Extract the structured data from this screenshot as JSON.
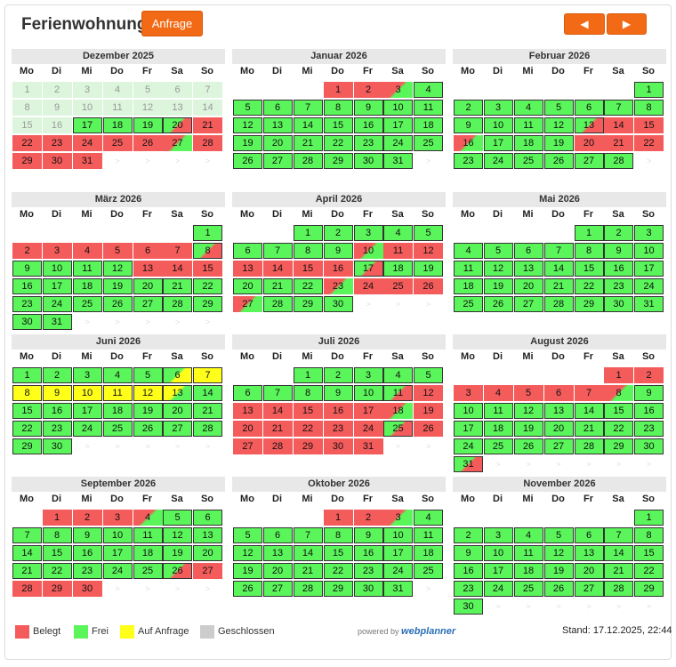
{
  "header": {
    "title": "Ferienwohnung",
    "request_label": "Anfrage",
    "prev_label": "◀",
    "next_label": "▶"
  },
  "weekdays": [
    "Mo",
    "Di",
    "Mi",
    "Do",
    "Fr",
    "Sa",
    "So"
  ],
  "legend": [
    {
      "label": "Belegt",
      "color": "#f45b5b"
    },
    {
      "label": "Frei",
      "color": "#5af55a"
    },
    {
      "label": "Auf Anfrage",
      "color": "#ffff1a"
    },
    {
      "label": "Geschlossen",
      "color": "#cccccc"
    }
  ],
  "footer": {
    "powered_prefix": "powered by",
    "powered_brand": "webplanner",
    "stand": "Stand: 17.12.2025, 22:44"
  },
  "months": [
    {
      "name": "Dezember 2025",
      "start": 0,
      "days": [
        "p",
        "p",
        "p",
        "p",
        "p",
        "p",
        "p",
        "p",
        "p",
        "p",
        "p",
        "p",
        "p",
        "p",
        "p",
        "p",
        "g",
        "g",
        "g",
        "gr",
        "r",
        "r",
        "r",
        "r",
        "r",
        "r",
        "rg",
        "r",
        "r",
        "r",
        "r"
      ]
    },
    {
      "name": "Januar 2026",
      "start": 3,
      "days": [
        "r",
        "r",
        "rg",
        "g",
        "g",
        "g",
        "g",
        "g",
        "g",
        "g",
        "g",
        "g",
        "g",
        "g",
        "g",
        "g",
        "g",
        "g",
        "g",
        "g",
        "g",
        "g",
        "g",
        "g",
        "g",
        "g",
        "g",
        "g",
        "g",
        "g",
        "g"
      ]
    },
    {
      "name": "Februar 2026",
      "start": 6,
      "days": [
        "g",
        "g",
        "g",
        "g",
        "g",
        "g",
        "g",
        "g",
        "g",
        "g",
        "g",
        "g",
        "gr",
        "r",
        "r",
        "rg",
        "g",
        "g",
        "g",
        "r",
        "r",
        "r",
        "g",
        "g",
        "g",
        "g",
        "g",
        "g"
      ]
    },
    {
      "name": "März 2026",
      "start": 6,
      "days": [
        "g",
        "r",
        "r",
        "r",
        "r",
        "r",
        "r",
        "gr",
        "g",
        "g",
        "g",
        "g",
        "r",
        "r",
        "r",
        "g",
        "g",
        "g",
        "g",
        "g",
        "g",
        "g",
        "g",
        "g",
        "g",
        "g",
        "g",
        "g",
        "g",
        "g",
        "g"
      ]
    },
    {
      "name": "April 2026",
      "start": 2,
      "days": [
        "g",
        "g",
        "g",
        "g",
        "g",
        "g",
        "g",
        "g",
        "g",
        "rg",
        "r",
        "r",
        "r",
        "r",
        "r",
        "r",
        "gr",
        "g",
        "g",
        "g",
        "g",
        "g",
        "rg",
        "r",
        "r",
        "r",
        "rg",
        "g",
        "g",
        "g"
      ]
    },
    {
      "name": "Mai 2026",
      "start": 4,
      "days": [
        "g",
        "g",
        "g",
        "g",
        "g",
        "g",
        "g",
        "g",
        "g",
        "g",
        "g",
        "g",
        "g",
        "g",
        "g",
        "g",
        "g",
        "g",
        "g",
        "g",
        "g",
        "g",
        "g",
        "g",
        "g",
        "g",
        "g",
        "g",
        "g",
        "g",
        "g"
      ]
    },
    {
      "name": "Juni 2026",
      "start": 0,
      "days": [
        "g",
        "g",
        "g",
        "g",
        "g",
        "gy",
        "y",
        "y",
        "y",
        "y",
        "y",
        "y",
        "yg",
        "g",
        "g",
        "g",
        "g",
        "g",
        "g",
        "g",
        "g",
        "g",
        "g",
        "g",
        "g",
        "g",
        "g",
        "g",
        "g",
        "g"
      ]
    },
    {
      "name": "Juli 2026",
      "start": 2,
      "days": [
        "g",
        "g",
        "g",
        "g",
        "g",
        "g",
        "g",
        "g",
        "g",
        "g",
        "gr",
        "r",
        "r",
        "r",
        "r",
        "r",
        "r",
        "rg",
        "r",
        "r",
        "r",
        "r",
        "r",
        "r",
        "gr",
        "r",
        "r",
        "r",
        "r",
        "r",
        "r"
      ]
    },
    {
      "name": "August 2026",
      "start": 5,
      "days": [
        "r",
        "r",
        "r",
        "r",
        "r",
        "r",
        "r",
        "rg",
        "g",
        "g",
        "g",
        "g",
        "g",
        "g",
        "g",
        "g",
        "g",
        "g",
        "g",
        "g",
        "g",
        "g",
        "g",
        "g",
        "g",
        "g",
        "g",
        "g",
        "g",
        "g",
        "gr"
      ]
    },
    {
      "name": "September 2026",
      "start": 1,
      "days": [
        "r",
        "r",
        "r",
        "rg",
        "g",
        "g",
        "g",
        "g",
        "g",
        "g",
        "g",
        "g",
        "g",
        "g",
        "g",
        "g",
        "g",
        "g",
        "g",
        "g",
        "g",
        "g",
        "g",
        "g",
        "g",
        "gr",
        "r",
        "r",
        "r",
        "r"
      ]
    },
    {
      "name": "Oktober 2026",
      "start": 3,
      "days": [
        "r",
        "r",
        "rg",
        "g",
        "g",
        "g",
        "g",
        "g",
        "g",
        "g",
        "g",
        "g",
        "g",
        "g",
        "g",
        "g",
        "g",
        "g",
        "g",
        "g",
        "g",
        "g",
        "g",
        "g",
        "g",
        "g",
        "g",
        "g",
        "g",
        "g",
        "g"
      ]
    },
    {
      "name": "November 2026",
      "start": 6,
      "days": [
        "g",
        "g",
        "g",
        "g",
        "g",
        "g",
        "g",
        "g",
        "g",
        "g",
        "g",
        "g",
        "g",
        "g",
        "g",
        "g",
        "g",
        "g",
        "g",
        "g",
        "g",
        "g",
        "g",
        "g",
        "g",
        "g",
        "g",
        "g",
        "g",
        "g"
      ]
    }
  ]
}
